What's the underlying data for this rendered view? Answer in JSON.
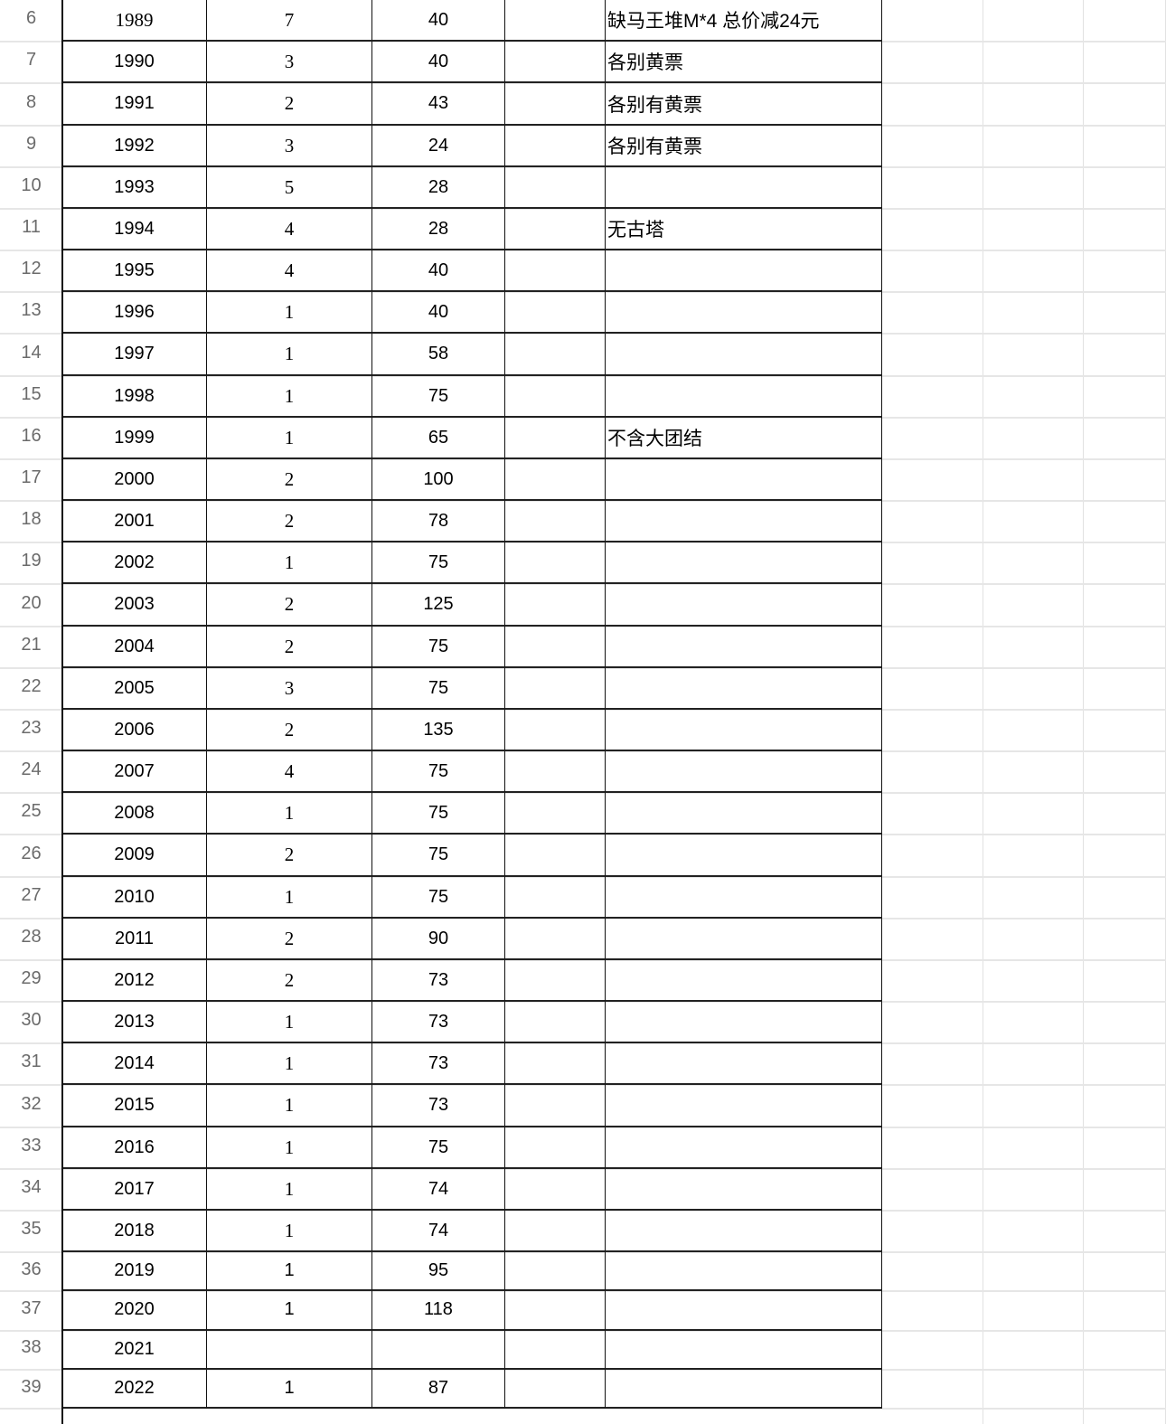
{
  "sheet": {
    "rows": [
      {
        "n": "6",
        "year": "1989",
        "count": "7",
        "price": "40",
        "e": "",
        "note": "缺马王堆M*4 总价减24元",
        "serif_year": true,
        "serif_count": true
      },
      {
        "n": "7",
        "year": "1990",
        "count": "3",
        "price": "40",
        "e": "",
        "note": "各别黄票",
        "serif_count": true
      },
      {
        "n": "8",
        "year": "1991",
        "count": "2",
        "price": "43",
        "e": "",
        "note": "各别有黄票",
        "serif_count": true
      },
      {
        "n": "9",
        "year": "1992",
        "count": "3",
        "price": "24",
        "e": "",
        "note": "各别有黄票",
        "serif_count": true
      },
      {
        "n": "10",
        "year": "1993",
        "count": "5",
        "price": "28",
        "e": "",
        "note": "",
        "serif_count": true
      },
      {
        "n": "11",
        "year": "1994",
        "count": "4",
        "price": "28",
        "e": "",
        "note": "无古塔",
        "serif_count": true
      },
      {
        "n": "12",
        "year": "1995",
        "count": "4",
        "price": "40",
        "e": "",
        "note": "",
        "serif_count": true
      },
      {
        "n": "13",
        "year": "1996",
        "count": "1",
        "price": "40",
        "e": "",
        "note": "",
        "serif_count": true
      },
      {
        "n": "14",
        "year": "1997",
        "count": "1",
        "price": "58",
        "e": "",
        "note": "",
        "serif_count": true
      },
      {
        "n": "15",
        "year": "1998",
        "count": "1",
        "price": "75",
        "e": "",
        "note": "",
        "serif_count": true
      },
      {
        "n": "16",
        "year": "1999",
        "count": "1",
        "price": "65",
        "e": "",
        "note": "不含大团结",
        "serif_count": true
      },
      {
        "n": "17",
        "year": "2000",
        "count": "2",
        "price": "100",
        "e": "",
        "note": "",
        "serif_count": true
      },
      {
        "n": "18",
        "year": "2001",
        "count": "2",
        "price": "78",
        "e": "",
        "note": "",
        "serif_count": true
      },
      {
        "n": "19",
        "year": "2002",
        "count": "1",
        "price": "75",
        "e": "",
        "note": "",
        "serif_count": true
      },
      {
        "n": "20",
        "year": "2003",
        "count": "2",
        "price": "125",
        "e": "",
        "note": "",
        "serif_count": true
      },
      {
        "n": "21",
        "year": "2004",
        "count": "2",
        "price": "75",
        "e": "",
        "note": "",
        "serif_count": true
      },
      {
        "n": "22",
        "year": "2005",
        "count": "3",
        "price": "75",
        "e": "",
        "note": "",
        "serif_count": true
      },
      {
        "n": "23",
        "year": "2006",
        "count": "2",
        "price": "135",
        "e": "",
        "note": "",
        "serif_count": true
      },
      {
        "n": "24",
        "year": "2007",
        "count": "4",
        "price": "75",
        "e": "",
        "note": "",
        "serif_count": true
      },
      {
        "n": "25",
        "year": "2008",
        "count": "1",
        "price": "75",
        "e": "",
        "note": "",
        "serif_count": true
      },
      {
        "n": "26",
        "year": "2009",
        "count": "2",
        "price": "75",
        "e": "",
        "note": "",
        "serif_count": true
      },
      {
        "n": "27",
        "year": "2010",
        "count": "1",
        "price": "75",
        "e": "",
        "note": "",
        "serif_count": true
      },
      {
        "n": "28",
        "year": "2011",
        "count": "2",
        "price": "90",
        "e": "",
        "note": "",
        "serif_count": true
      },
      {
        "n": "29",
        "year": "2012",
        "count": "2",
        "price": "73",
        "e": "",
        "note": "",
        "serif_count": true
      },
      {
        "n": "30",
        "year": "2013",
        "count": "1",
        "price": "73",
        "e": "",
        "note": "",
        "serif_count": true
      },
      {
        "n": "31",
        "year": "2014",
        "count": "1",
        "price": "73",
        "e": "",
        "note": "",
        "serif_count": true
      },
      {
        "n": "32",
        "year": "2015",
        "count": "1",
        "price": "73",
        "e": "",
        "note": "",
        "serif_count": true
      },
      {
        "n": "33",
        "year": "2016",
        "count": "1",
        "price": "75",
        "e": "",
        "note": "",
        "serif_count": true
      },
      {
        "n": "34",
        "year": "2017",
        "count": "1",
        "price": "74",
        "e": "",
        "note": "",
        "serif_count": true
      },
      {
        "n": "35",
        "year": "2018",
        "count": "1",
        "price": "74",
        "e": "",
        "note": "",
        "serif_count": true
      },
      {
        "n": "36",
        "year": "2019",
        "count": "1",
        "price": "95",
        "e": "",
        "note": ""
      },
      {
        "n": "37",
        "year": "2020",
        "count": "1",
        "price": "118",
        "e": "",
        "note": ""
      },
      {
        "n": "38",
        "year": "2021",
        "count": "",
        "price": "",
        "e": "",
        "note": ""
      },
      {
        "n": "39",
        "year": "2022",
        "count": "1",
        "price": "87",
        "e": "",
        "note": ""
      }
    ]
  }
}
